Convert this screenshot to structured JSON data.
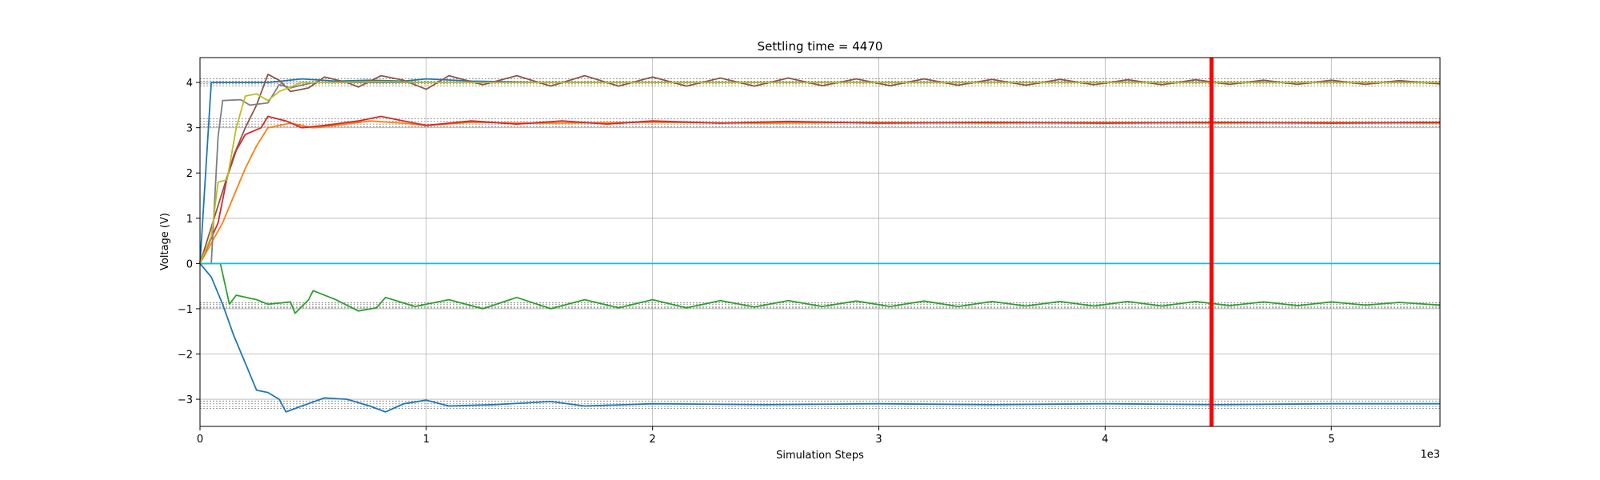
{
  "chart_data": {
    "type": "line",
    "title": "Settling time = 4470",
    "xlabel": "Simulation Steps",
    "ylabel": "Voltage (V)",
    "x_offset_label": "1e3",
    "xlim": [
      0,
      5.48
    ],
    "ylim": [
      -3.6,
      4.55
    ],
    "xticks": [
      0,
      1,
      2,
      3,
      4,
      5
    ],
    "xtick_labels": [
      "0",
      "1",
      "2",
      "3",
      "4",
      "5"
    ],
    "yticks": [
      -3,
      -2,
      -1,
      0,
      1,
      2,
      3,
      4
    ],
    "ytick_labels": [
      "−3",
      "−2",
      "−1",
      "0",
      "1",
      "2",
      "3",
      "4"
    ],
    "grid": true,
    "settling_marker": {
      "x": 4.47,
      "color": "#ff0000"
    },
    "tolerance_bands": [
      4.08,
      4.03,
      3.97,
      3.92,
      3.2,
      3.14,
      3.08,
      3.02,
      -0.87,
      -0.9,
      -0.95,
      -0.98,
      -3.04,
      -3.1,
      -3.16,
      -3.2
    ],
    "series": [
      {
        "color": "#1f77b4",
        "points": [
          [
            0,
            0
          ],
          [
            0.05,
            -0.3
          ],
          [
            0.1,
            -0.9
          ],
          [
            0.15,
            -1.6
          ],
          [
            0.2,
            -2.2
          ],
          [
            0.25,
            -2.8
          ],
          [
            0.3,
            -2.85
          ],
          [
            0.35,
            -3.0
          ],
          [
            0.38,
            -3.28
          ],
          [
            0.45,
            -3.15
          ],
          [
            0.55,
            -2.97
          ],
          [
            0.65,
            -3.0
          ],
          [
            0.75,
            -3.15
          ],
          [
            0.82,
            -3.28
          ],
          [
            0.9,
            -3.1
          ],
          [
            1.0,
            -3.02
          ],
          [
            1.1,
            -3.15
          ],
          [
            1.3,
            -3.12
          ],
          [
            1.55,
            -3.05
          ],
          [
            1.7,
            -3.15
          ],
          [
            2.0,
            -3.1
          ],
          [
            2.5,
            -3.12
          ],
          [
            3.0,
            -3.1
          ],
          [
            3.5,
            -3.12
          ],
          [
            4.0,
            -3.1
          ],
          [
            4.5,
            -3.12
          ],
          [
            5.0,
            -3.1
          ],
          [
            5.48,
            -3.1
          ]
        ]
      },
      {
        "color": "#1f77b4",
        "points": [
          [
            0,
            0
          ],
          [
            0.05,
            4.0
          ],
          [
            0.3,
            4.0
          ],
          [
            0.45,
            4.08
          ],
          [
            0.6,
            4.03
          ],
          [
            0.75,
            4.05
          ],
          [
            0.9,
            4.03
          ],
          [
            1.0,
            4.08
          ],
          [
            1.2,
            4.03
          ],
          [
            1.5,
            4.0
          ],
          [
            2.0,
            4.0
          ],
          [
            3.0,
            4.0
          ],
          [
            4.0,
            4.0
          ],
          [
            5.48,
            4.0
          ]
        ]
      },
      {
        "color": "#ff7f0e",
        "points": [
          [
            0,
            0
          ],
          [
            0.1,
            0.9
          ],
          [
            0.15,
            1.5
          ],
          [
            0.2,
            2.1
          ],
          [
            0.25,
            2.6
          ],
          [
            0.3,
            3.0
          ],
          [
            0.4,
            3.1
          ],
          [
            0.5,
            3.0
          ],
          [
            0.6,
            3.05
          ],
          [
            0.75,
            3.15
          ],
          [
            0.9,
            3.1
          ],
          [
            1.0,
            3.05
          ],
          [
            1.2,
            3.12
          ],
          [
            1.5,
            3.1
          ],
          [
            2.0,
            3.12
          ],
          [
            2.5,
            3.1
          ],
          [
            3.0,
            3.12
          ],
          [
            3.5,
            3.1
          ],
          [
            4.0,
            3.12
          ],
          [
            4.5,
            3.1
          ],
          [
            5.0,
            3.12
          ],
          [
            5.48,
            3.1
          ]
        ]
      },
      {
        "color": "#d62728",
        "points": [
          [
            0,
            0
          ],
          [
            0.08,
            0.9
          ],
          [
            0.12,
            1.9
          ],
          [
            0.16,
            2.5
          ],
          [
            0.2,
            2.85
          ],
          [
            0.27,
            3.0
          ],
          [
            0.3,
            3.25
          ],
          [
            0.38,
            3.15
          ],
          [
            0.45,
            3.0
          ],
          [
            0.55,
            3.05
          ],
          [
            0.7,
            3.15
          ],
          [
            0.8,
            3.25
          ],
          [
            0.9,
            3.15
          ],
          [
            1.0,
            3.05
          ],
          [
            1.2,
            3.15
          ],
          [
            1.4,
            3.08
          ],
          [
            1.6,
            3.15
          ],
          [
            1.8,
            3.08
          ],
          [
            2.0,
            3.15
          ],
          [
            2.3,
            3.1
          ],
          [
            2.6,
            3.14
          ],
          [
            3.0,
            3.1
          ],
          [
            3.5,
            3.12
          ],
          [
            4.0,
            3.1
          ],
          [
            4.5,
            3.12
          ],
          [
            5.0,
            3.1
          ],
          [
            5.48,
            3.12
          ]
        ]
      },
      {
        "color": "#2ca02c",
        "points": [
          [
            0,
            0
          ],
          [
            0.09,
            0.0
          ],
          [
            0.13,
            -0.9
          ],
          [
            0.16,
            -0.7
          ],
          [
            0.25,
            -0.8
          ],
          [
            0.3,
            -0.9
          ],
          [
            0.4,
            -0.85
          ],
          [
            0.42,
            -1.1
          ],
          [
            0.48,
            -0.8
          ],
          [
            0.5,
            -0.6
          ],
          [
            0.6,
            -0.8
          ],
          [
            0.7,
            -1.05
          ],
          [
            0.78,
            -0.98
          ],
          [
            0.82,
            -0.75
          ],
          [
            0.95,
            -0.95
          ],
          [
            1.1,
            -0.8
          ],
          [
            1.25,
            -1.0
          ],
          [
            1.4,
            -0.75
          ],
          [
            1.55,
            -1.0
          ],
          [
            1.7,
            -0.8
          ],
          [
            1.85,
            -0.98
          ],
          [
            2.0,
            -0.8
          ],
          [
            2.15,
            -0.98
          ],
          [
            2.3,
            -0.82
          ],
          [
            2.45,
            -0.96
          ],
          [
            2.6,
            -0.82
          ],
          [
            2.75,
            -0.95
          ],
          [
            2.9,
            -0.83
          ],
          [
            3.05,
            -0.95
          ],
          [
            3.2,
            -0.83
          ],
          [
            3.35,
            -0.95
          ],
          [
            3.5,
            -0.84
          ],
          [
            3.65,
            -0.94
          ],
          [
            3.8,
            -0.84
          ],
          [
            3.95,
            -0.94
          ],
          [
            4.1,
            -0.84
          ],
          [
            4.25,
            -0.94
          ],
          [
            4.4,
            -0.84
          ],
          [
            4.55,
            -0.93
          ],
          [
            4.7,
            -0.85
          ],
          [
            4.85,
            -0.93
          ],
          [
            5.0,
            -0.85
          ],
          [
            5.15,
            -0.92
          ],
          [
            5.3,
            -0.86
          ],
          [
            5.48,
            -0.92
          ]
        ]
      },
      {
        "color": "#8c564b",
        "points": [
          [
            0,
            0
          ],
          [
            0.05,
            0.8
          ],
          [
            0.1,
            1.6
          ],
          [
            0.15,
            2.4
          ],
          [
            0.2,
            3.0
          ],
          [
            0.25,
            3.5
          ],
          [
            0.3,
            4.18
          ],
          [
            0.35,
            4.05
          ],
          [
            0.4,
            3.8
          ],
          [
            0.48,
            3.88
          ],
          [
            0.55,
            4.12
          ],
          [
            0.65,
            4.0
          ],
          [
            0.7,
            3.9
          ],
          [
            0.8,
            4.15
          ],
          [
            0.9,
            4.05
          ],
          [
            1.0,
            3.85
          ],
          [
            1.1,
            4.15
          ],
          [
            1.25,
            3.95
          ],
          [
            1.4,
            4.15
          ],
          [
            1.55,
            3.92
          ],
          [
            1.7,
            4.15
          ],
          [
            1.85,
            3.92
          ],
          [
            2.0,
            4.12
          ],
          [
            2.15,
            3.92
          ],
          [
            2.3,
            4.1
          ],
          [
            2.45,
            3.92
          ],
          [
            2.6,
            4.1
          ],
          [
            2.75,
            3.93
          ],
          [
            2.9,
            4.08
          ],
          [
            3.05,
            3.93
          ],
          [
            3.2,
            4.08
          ],
          [
            3.35,
            3.94
          ],
          [
            3.5,
            4.07
          ],
          [
            3.65,
            3.94
          ],
          [
            3.8,
            4.07
          ],
          [
            3.95,
            3.95
          ],
          [
            4.1,
            4.06
          ],
          [
            4.25,
            3.95
          ],
          [
            4.4,
            4.06
          ],
          [
            4.55,
            3.96
          ],
          [
            4.7,
            4.05
          ],
          [
            4.85,
            3.96
          ],
          [
            5.0,
            4.05
          ],
          [
            5.15,
            3.96
          ],
          [
            5.3,
            4.04
          ],
          [
            5.48,
            3.97
          ]
        ]
      },
      {
        "color": "#7f7f7f",
        "points": [
          [
            0,
            0
          ],
          [
            0.05,
            0.0
          ],
          [
            0.08,
            2.8
          ],
          [
            0.1,
            3.6
          ],
          [
            0.18,
            3.62
          ],
          [
            0.22,
            3.5
          ],
          [
            0.3,
            3.55
          ],
          [
            0.35,
            3.95
          ],
          [
            0.4,
            3.88
          ],
          [
            0.5,
            4.0
          ],
          [
            0.6,
            4.0
          ],
          [
            0.8,
            4.0
          ],
          [
            1.0,
            4.0
          ],
          [
            5.48,
            4.0
          ]
        ]
      },
      {
        "color": "#bcbd22",
        "points": [
          [
            0,
            0
          ],
          [
            0.05,
            0.6
          ],
          [
            0.08,
            1.8
          ],
          [
            0.12,
            1.85
          ],
          [
            0.16,
            3.0
          ],
          [
            0.2,
            3.7
          ],
          [
            0.25,
            3.75
          ],
          [
            0.3,
            3.6
          ],
          [
            0.35,
            3.8
          ],
          [
            0.4,
            3.9
          ],
          [
            0.45,
            4.0
          ],
          [
            0.55,
            4.0
          ],
          [
            0.8,
            4.02
          ],
          [
            1.0,
            4.0
          ],
          [
            1.5,
            4.0
          ],
          [
            2.0,
            4.0
          ],
          [
            3.0,
            4.0
          ],
          [
            4.0,
            4.0
          ],
          [
            5.48,
            4.0
          ]
        ]
      },
      {
        "color": "#17becf",
        "points": [
          [
            0,
            0
          ],
          [
            5.48,
            0
          ]
        ]
      }
    ]
  }
}
